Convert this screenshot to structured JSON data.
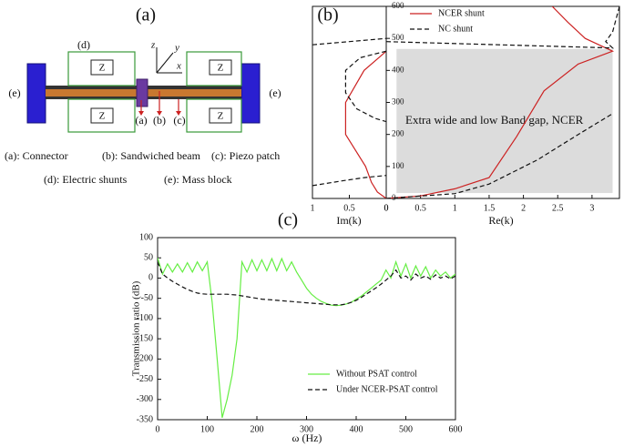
{
  "diagram": {
    "label": "(a)",
    "impedance": [
      "Z",
      "Z",
      "Z",
      "Z"
    ],
    "shunt_label": "(d)",
    "mass_labels": [
      "(e)",
      "(e)"
    ],
    "axes": [
      "z",
      "y",
      "x"
    ],
    "markers": [
      "(a)",
      "(b)",
      "(c)"
    ],
    "captions": [
      "(a): Connector",
      "(b): Sandwiched beam",
      "(c): Piezo patch",
      "(d): Electric shunts",
      "(e): Mass block"
    ]
  },
  "chart_data": [
    {
      "type": "line",
      "xlabel": "Im(k)",
      "xlim": [
        1,
        0
      ],
      "xticks": [
        1,
        0.5,
        0
      ],
      "ylim": [
        0,
        600
      ],
      "series": [
        {
          "color": "#cc2222",
          "style": "solid",
          "x": [
            0,
            0.12,
            0.2,
            0.28,
            0.55,
            0.55,
            0.3,
            0.1,
            0
          ],
          "values": [
            0,
            20,
            50,
            100,
            200,
            300,
            400,
            440,
            460
          ]
        },
        {
          "color": "#111111",
          "style": "dashed",
          "x": [
            0,
            0.35,
            0.55,
            0.55,
            0.4,
            0.15,
            0,
            null,
            1,
            0.6,
            0.3,
            0,
            null,
            1,
            0.5,
            0
          ],
          "values": [
            460,
            440,
            400,
            330,
            280,
            250,
            240,
            null,
            40,
            55,
            65,
            72,
            null,
            480,
            490,
            500
          ]
        }
      ]
    },
    {
      "type": "line",
      "title": "(b)",
      "xlabel": "Re(k)",
      "annotation": "Extra wide and low Band gap, NCER",
      "band": {
        "x": [
          0.15,
          3.3
        ],
        "y": [
          17,
          467
        ]
      },
      "xlim": [
        0,
        3.4
      ],
      "xticks": [
        0,
        0.5,
        1,
        1.5,
        2,
        2.5,
        3
      ],
      "ylim": [
        0,
        600
      ],
      "yticks": [
        0,
        100,
        200,
        300,
        400,
        500,
        600
      ],
      "series": [
        {
          "name": "NCER shunt",
          "color": "#cc2222",
          "style": "solid",
          "x": [
            0,
            0.5,
            1.0,
            1.5,
            1.9,
            2.3,
            2.8,
            3.3,
            2.9,
            2.65,
            2.42
          ],
          "values": [
            0,
            8,
            30,
            65,
            193,
            336,
            420,
            460,
            500,
            550,
            600
          ]
        },
        {
          "name": "NC shunt",
          "color": "#111111",
          "style": "dashed",
          "x": [
            0,
            1.0,
            1.5,
            2.2,
            2.8,
            3.3,
            null,
            0,
            3.3,
            3.2,
            3.3,
            3.4
          ],
          "values": [
            0,
            15,
            45,
            120,
            200,
            265,
            null,
            490,
            470,
            490,
            520,
            600
          ]
        }
      ]
    },
    {
      "type": "line",
      "title": "(c)",
      "xlabel": "ω (Hz)",
      "ylabel": "Transmission ratio (dB)",
      "xlim": [
        0,
        600
      ],
      "xticks": [
        0,
        100,
        200,
        300,
        400,
        500,
        600
      ],
      "ylim": [
        -350,
        100
      ],
      "yticks": [
        -350,
        -300,
        -250,
        -200,
        -150,
        -100,
        -50,
        0,
        50,
        100
      ],
      "legend": "lower right",
      "x": [
        0,
        10,
        20,
        30,
        40,
        50,
        60,
        70,
        80,
        90,
        100,
        110,
        120,
        130,
        140,
        150,
        160,
        170,
        180,
        190,
        200,
        210,
        220,
        230,
        240,
        250,
        260,
        270,
        280,
        290,
        300,
        310,
        320,
        330,
        340,
        350,
        360,
        370,
        380,
        390,
        400,
        410,
        420,
        430,
        440,
        450,
        460,
        470,
        480,
        490,
        500,
        510,
        520,
        530,
        540,
        550,
        560,
        570,
        580,
        590,
        600
      ],
      "series": [
        {
          "name": "Without PSAT control",
          "color": "#66ee44",
          "style": "solid",
          "values": [
            50,
            10,
            35,
            15,
            35,
            15,
            38,
            15,
            40,
            18,
            40,
            -60,
            -200,
            -345,
            -300,
            -240,
            -150,
            40,
            15,
            45,
            18,
            45,
            18,
            48,
            18,
            48,
            18,
            40,
            15,
            -5,
            -25,
            -40,
            -50,
            -58,
            -63,
            -67,
            -68,
            -67,
            -64,
            -60,
            -52,
            -45,
            -35,
            -25,
            -15,
            -5,
            20,
            0,
            40,
            5,
            35,
            0,
            30,
            5,
            28,
            0,
            20,
            5,
            15,
            0,
            10
          ]
        },
        {
          "name": "Under NCER-PSAT control",
          "color": "#111111",
          "style": "dashed",
          "values": [
            40,
            10,
            0,
            -8,
            -15,
            -22,
            -28,
            -33,
            -37,
            -39,
            -40,
            -40,
            -40,
            -40,
            -40,
            -41,
            -42,
            -44,
            -46,
            -48,
            -50,
            -52,
            -53,
            -54,
            -55,
            -56,
            -57,
            -58,
            -59,
            -60,
            -61,
            -62,
            -63,
            -64,
            -65,
            -66,
            -66,
            -66,
            -64,
            -60,
            -55,
            -48,
            -40,
            -32,
            -24,
            -15,
            -5,
            5,
            20,
            0,
            5,
            -5,
            10,
            0,
            5,
            -3,
            8,
            0,
            5,
            -2,
            5
          ]
        }
      ]
    }
  ]
}
